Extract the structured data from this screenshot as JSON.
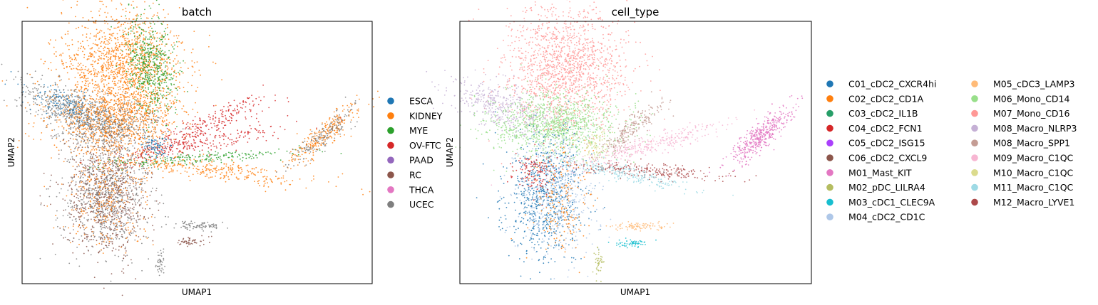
{
  "chart_data": [
    {
      "type": "scatter",
      "title": "batch",
      "xlabel": "UMAP1",
      "ylabel": "UMAP2",
      "grid": false,
      "legend_position": "right",
      "legend": [
        {
          "label": "ESCA",
          "color": "#1f77b4"
        },
        {
          "label": "KIDNEY",
          "color": "#ff7f0e"
        },
        {
          "label": "MYE",
          "color": "#2ca02c"
        },
        {
          "label": "OV-FTC",
          "color": "#d62728"
        },
        {
          "label": "PAAD",
          "color": "#9467bd"
        },
        {
          "label": "RC",
          "color": "#8c564b"
        },
        {
          "label": "THCA",
          "color": "#e377c2"
        },
        {
          "label": "UCEC",
          "color": "#7f7f7f"
        }
      ]
    },
    {
      "type": "scatter",
      "title": "cell_type",
      "xlabel": "UMAP1",
      "ylabel": "UMAP2",
      "grid": false,
      "legend_position": "right",
      "legend": [
        {
          "label": "C01_cDC2_CXCR4hi",
          "color": "#1f77b4"
        },
        {
          "label": "C02_cDC2_CD1A",
          "color": "#ff7f0e"
        },
        {
          "label": "C03_cDC2_IL1B",
          "color": "#279e68"
        },
        {
          "label": "C04_cDC2_FCN1",
          "color": "#d62728"
        },
        {
          "label": "C05_cDC2_ISG15",
          "color": "#aa40fc"
        },
        {
          "label": "C06_cDC2_CXCL9",
          "color": "#8c564b"
        },
        {
          "label": "M01_Mast_KIT",
          "color": "#e377c2"
        },
        {
          "label": "M02_pDC_LILRA4",
          "color": "#b5bd61"
        },
        {
          "label": "M03_cDC1_CLEC9A",
          "color": "#17becf"
        },
        {
          "label": "M04_cDC2_CD1C",
          "color": "#aec7e8"
        },
        {
          "label": "M05_cDC3_LAMP3",
          "color": "#ffbb78"
        },
        {
          "label": "M06_Mono_CD14",
          "color": "#98df8a"
        },
        {
          "label": "M07_Mono_CD16",
          "color": "#ff9896"
        },
        {
          "label": "M08_Macro_NLRP3",
          "color": "#c5b0d5"
        },
        {
          "label": "M08_Macro_SPP1",
          "color": "#c49c94"
        },
        {
          "label": "M09_Macro_C1QC",
          "color": "#f7b6d2"
        },
        {
          "label": "M10_Macro_C1QC",
          "color": "#dbdb8d"
        },
        {
          "label": "M11_Macro_C1QC",
          "color": "#9edae5"
        },
        {
          "label": "M12_Macro_LYVE1",
          "color": "#ad494a"
        }
      ]
    }
  ]
}
